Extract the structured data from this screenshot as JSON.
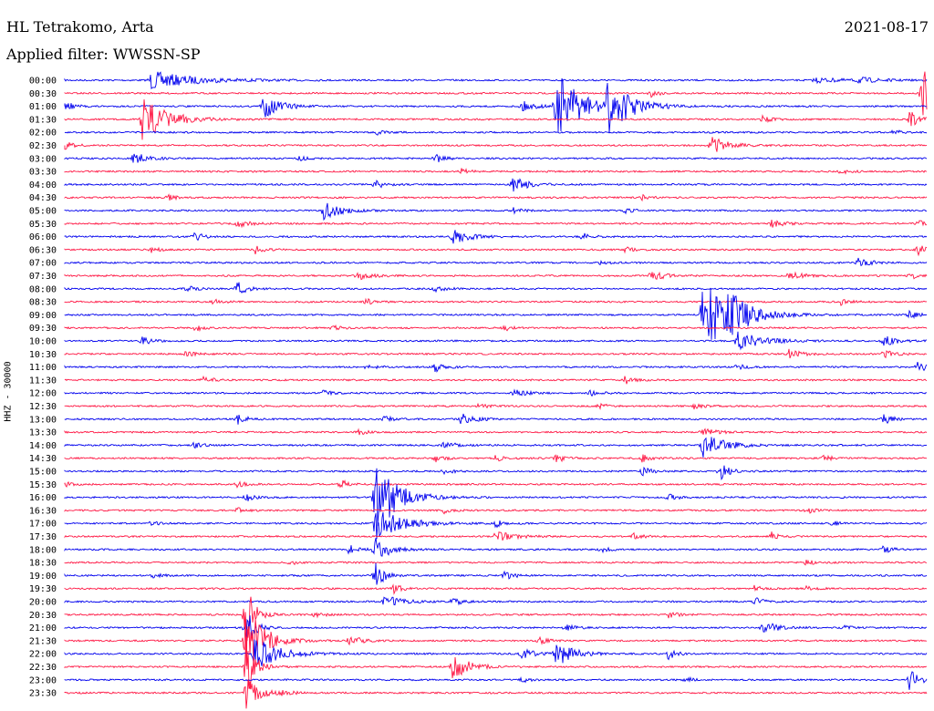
{
  "header": {
    "station": "HL Tetrakomo, Arta",
    "date": "2021-08-17",
    "filter": "Applied filter: WWSSN-SP",
    "channel": "HHZ - 30000"
  },
  "colors": {
    "even": "#0000ee",
    "odd": "#ff1744"
  },
  "chart_data": {
    "type": "line",
    "title": "HL Tetrakomo, Arta",
    "ylabel": "HHZ - 30000",
    "traces": [
      {
        "label": "00:00",
        "color": "blue",
        "events": [
          [
            0.1,
            10,
            0.1
          ],
          [
            0.87,
            3,
            0.06
          ],
          [
            0.92,
            3,
            0.05
          ]
        ]
      },
      {
        "label": "00:30",
        "color": "red",
        "events": [
          [
            0.68,
            4,
            0.02
          ],
          [
            0.995,
            30,
            0.03
          ]
        ]
      },
      {
        "label": "01:00",
        "color": "blue",
        "events": [
          [
            0.0,
            6,
            0.02
          ],
          [
            0.23,
            14,
            0.04
          ],
          [
            0.53,
            6,
            0.03
          ],
          [
            0.57,
            38,
            0.06
          ],
          [
            0.63,
            30,
            0.05
          ]
        ]
      },
      {
        "label": "01:30",
        "color": "red",
        "events": [
          [
            0.09,
            24,
            0.06
          ],
          [
            0.81,
            5,
            0.02
          ],
          [
            0.98,
            10,
            0.02
          ]
        ]
      },
      {
        "label": "02:00",
        "color": "blue",
        "events": [
          [
            0.36,
            3,
            0.02
          ],
          [
            0.96,
            3,
            0.02
          ]
        ]
      },
      {
        "label": "02:30",
        "color": "red",
        "events": [
          [
            0.0,
            6,
            0.02
          ],
          [
            0.75,
            10,
            0.04
          ]
        ]
      },
      {
        "label": "03:00",
        "color": "blue",
        "events": [
          [
            0.08,
            8,
            0.03
          ],
          [
            0.27,
            3,
            0.02
          ],
          [
            0.43,
            5,
            0.02
          ]
        ]
      },
      {
        "label": "03:30",
        "color": "red",
        "events": [
          [
            0.46,
            3,
            0.02
          ],
          [
            0.9,
            3,
            0.02
          ]
        ]
      },
      {
        "label": "04:00",
        "color": "blue",
        "events": [
          [
            0.36,
            6,
            0.02
          ],
          [
            0.52,
            10,
            0.03
          ]
        ]
      },
      {
        "label": "04:30",
        "color": "red",
        "events": [
          [
            0.12,
            3,
            0.02
          ],
          [
            0.67,
            3,
            0.02
          ]
        ]
      },
      {
        "label": "05:00",
        "color": "blue",
        "events": [
          [
            0.3,
            10,
            0.04
          ],
          [
            0.52,
            3,
            0.02
          ],
          [
            0.65,
            3,
            0.02
          ]
        ]
      },
      {
        "label": "05:30",
        "color": "red",
        "events": [
          [
            0.2,
            4,
            0.03
          ],
          [
            0.82,
            4,
            0.03
          ],
          [
            0.99,
            5,
            0.02
          ]
        ]
      },
      {
        "label": "06:00",
        "color": "blue",
        "events": [
          [
            0.15,
            5,
            0.02
          ],
          [
            0.45,
            8,
            0.04
          ],
          [
            0.6,
            4,
            0.02
          ]
        ]
      },
      {
        "label": "06:30",
        "color": "red",
        "events": [
          [
            0.1,
            3,
            0.02
          ],
          [
            0.22,
            5,
            0.02
          ],
          [
            0.65,
            3,
            0.02
          ],
          [
            0.99,
            6,
            0.02
          ]
        ]
      },
      {
        "label": "07:00",
        "color": "blue",
        "events": [
          [
            0.62,
            3,
            0.02
          ],
          [
            0.92,
            5,
            0.03
          ]
        ]
      },
      {
        "label": "07:30",
        "color": "red",
        "events": [
          [
            0.34,
            5,
            0.03
          ],
          [
            0.68,
            6,
            0.03
          ],
          [
            0.84,
            5,
            0.03
          ],
          [
            0.98,
            4,
            0.02
          ]
        ]
      },
      {
        "label": "08:00",
        "color": "blue",
        "events": [
          [
            0.2,
            8,
            0.02
          ],
          [
            0.14,
            4,
            0.02
          ],
          [
            0.43,
            4,
            0.02
          ]
        ]
      },
      {
        "label": "08:30",
        "color": "red",
        "events": [
          [
            0.17,
            4,
            0.02
          ],
          [
            0.35,
            4,
            0.02
          ],
          [
            0.9,
            4,
            0.02
          ]
        ]
      },
      {
        "label": "09:00",
        "color": "blue",
        "events": [
          [
            0.74,
            45,
            0.06
          ],
          [
            0.77,
            14,
            0.05
          ],
          [
            0.98,
            4,
            0.02
          ]
        ]
      },
      {
        "label": "09:30",
        "color": "red",
        "events": [
          [
            0.15,
            4,
            0.02
          ],
          [
            0.31,
            3,
            0.02
          ],
          [
            0.51,
            3,
            0.02
          ]
        ]
      },
      {
        "label": "10:00",
        "color": "blue",
        "events": [
          [
            0.09,
            5,
            0.02
          ],
          [
            0.78,
            10,
            0.06
          ],
          [
            0.95,
            6,
            0.03
          ]
        ]
      },
      {
        "label": "10:30",
        "color": "red",
        "events": [
          [
            0.14,
            3,
            0.02
          ],
          [
            0.84,
            5,
            0.03
          ],
          [
            0.95,
            6,
            0.02
          ]
        ]
      },
      {
        "label": "11:00",
        "color": "blue",
        "events": [
          [
            0.35,
            3,
            0.02
          ],
          [
            0.43,
            6,
            0.02
          ],
          [
            0.78,
            4,
            0.02
          ],
          [
            0.99,
            8,
            0.02
          ]
        ]
      },
      {
        "label": "11:30",
        "color": "red",
        "events": [
          [
            0.16,
            6,
            0.02
          ],
          [
            0.65,
            5,
            0.02
          ]
        ]
      },
      {
        "label": "12:00",
        "color": "blue",
        "events": [
          [
            0.3,
            3,
            0.02
          ],
          [
            0.52,
            4,
            0.03
          ],
          [
            0.61,
            4,
            0.02
          ]
        ]
      },
      {
        "label": "12:30",
        "color": "red",
        "events": [
          [
            0.48,
            3,
            0.02
          ],
          [
            0.62,
            3,
            0.02
          ],
          [
            0.73,
            3,
            0.02
          ]
        ]
      },
      {
        "label": "13:00",
        "color": "blue",
        "events": [
          [
            0.2,
            6,
            0.02
          ],
          [
            0.37,
            4,
            0.02
          ],
          [
            0.46,
            7,
            0.03
          ],
          [
            0.95,
            6,
            0.02
          ]
        ]
      },
      {
        "label": "13:30",
        "color": "red",
        "events": [
          [
            0.34,
            3,
            0.02
          ],
          [
            0.74,
            5,
            0.03
          ]
        ]
      },
      {
        "label": "14:00",
        "color": "blue",
        "events": [
          [
            0.15,
            3,
            0.02
          ],
          [
            0.44,
            4,
            0.03
          ],
          [
            0.74,
            14,
            0.05
          ]
        ]
      },
      {
        "label": "14:30",
        "color": "red",
        "events": [
          [
            0.43,
            4,
            0.02
          ],
          [
            0.5,
            4,
            0.02
          ],
          [
            0.57,
            5,
            0.02
          ],
          [
            0.67,
            4,
            0.02
          ],
          [
            0.88,
            4,
            0.02
          ]
        ]
      },
      {
        "label": "15:00",
        "color": "blue",
        "events": [
          [
            0.44,
            3,
            0.02
          ],
          [
            0.67,
            5,
            0.02
          ],
          [
            0.76,
            10,
            0.02
          ]
        ]
      },
      {
        "label": "15:30",
        "color": "red",
        "events": [
          [
            0.0,
            3,
            0.02
          ],
          [
            0.2,
            4,
            0.02
          ],
          [
            0.32,
            5,
            0.02
          ]
        ]
      },
      {
        "label": "16:00",
        "color": "blue",
        "events": [
          [
            0.21,
            5,
            0.02
          ],
          [
            0.36,
            44,
            0.05
          ],
          [
            0.7,
            4,
            0.02
          ]
        ]
      },
      {
        "label": "16:30",
        "color": "red",
        "events": [
          [
            0.2,
            3,
            0.02
          ],
          [
            0.44,
            3,
            0.02
          ],
          [
            0.86,
            4,
            0.02
          ]
        ]
      },
      {
        "label": "17:00",
        "color": "blue",
        "events": [
          [
            0.36,
            20,
            0.06
          ],
          [
            0.1,
            3,
            0.02
          ],
          [
            0.5,
            4,
            0.02
          ],
          [
            0.89,
            3,
            0.02
          ]
        ]
      },
      {
        "label": "17:30",
        "color": "red",
        "events": [
          [
            0.5,
            6,
            0.04
          ],
          [
            0.66,
            4,
            0.02
          ],
          [
            0.82,
            5,
            0.02
          ]
        ]
      },
      {
        "label": "18:00",
        "color": "blue",
        "events": [
          [
            0.33,
            6,
            0.02
          ],
          [
            0.36,
            16,
            0.03
          ],
          [
            0.62,
            4,
            0.02
          ],
          [
            0.95,
            5,
            0.02
          ]
        ]
      },
      {
        "label": "18:30",
        "color": "red",
        "events": [
          [
            0.26,
            3,
            0.02
          ],
          [
            0.86,
            3,
            0.02
          ]
        ]
      },
      {
        "label": "19:00",
        "color": "blue",
        "events": [
          [
            0.1,
            4,
            0.02
          ],
          [
            0.51,
            6,
            0.02
          ],
          [
            0.36,
            16,
            0.02
          ]
        ]
      },
      {
        "label": "19:30",
        "color": "red",
        "events": [
          [
            0.38,
            6,
            0.02
          ],
          [
            0.8,
            3,
            0.02
          ],
          [
            0.86,
            3,
            0.02
          ]
        ]
      },
      {
        "label": "20:00",
        "color": "blue",
        "events": [
          [
            0.37,
            8,
            0.04
          ],
          [
            0.45,
            5,
            0.02
          ],
          [
            0.8,
            5,
            0.02
          ]
        ]
      },
      {
        "label": "20:30",
        "color": "red",
        "events": [
          [
            0.21,
            40,
            0.02
          ],
          [
            0.29,
            3,
            0.02
          ],
          [
            0.7,
            4,
            0.02
          ]
        ]
      },
      {
        "label": "21:00",
        "color": "blue",
        "events": [
          [
            0.21,
            22,
            0.02
          ],
          [
            0.58,
            5,
            0.02
          ],
          [
            0.81,
            8,
            0.03
          ],
          [
            0.9,
            3,
            0.02
          ]
        ]
      },
      {
        "label": "21:30",
        "color": "red",
        "events": [
          [
            0.21,
            45,
            0.04
          ],
          [
            0.33,
            10,
            0.02
          ],
          [
            0.55,
            4,
            0.02
          ]
        ]
      },
      {
        "label": "22:00",
        "color": "blue",
        "events": [
          [
            0.22,
            18,
            0.06
          ],
          [
            0.53,
            6,
            0.03
          ],
          [
            0.57,
            14,
            0.04
          ],
          [
            0.7,
            6,
            0.02
          ]
        ]
      },
      {
        "label": "22:30",
        "color": "red",
        "events": [
          [
            0.45,
            14,
            0.04
          ],
          [
            0.21,
            40,
            0.02
          ]
        ]
      },
      {
        "label": "23:00",
        "color": "blue",
        "events": [
          [
            0.53,
            3,
            0.02
          ],
          [
            0.72,
            3,
            0.02
          ],
          [
            0.98,
            14,
            0.02
          ]
        ]
      },
      {
        "label": "23:30",
        "color": "red",
        "events": [
          [
            0.21,
            18,
            0.03
          ],
          [
            0.25,
            4,
            0.02
          ]
        ]
      }
    ]
  }
}
